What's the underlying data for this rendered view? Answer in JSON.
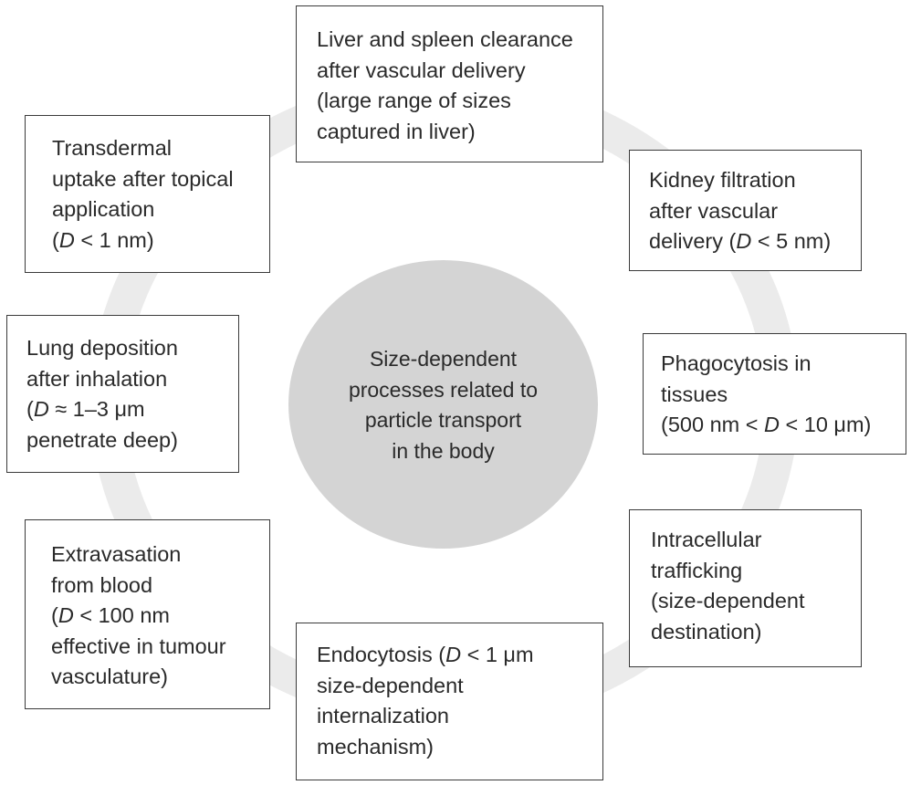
{
  "center": {
    "lines": [
      "Size-dependent",
      "processes related to",
      "particle transport",
      "in the body"
    ]
  },
  "colors": {
    "ring": "#ebebeb",
    "hub": "#d4d4d4",
    "box_border": "#3a3a3a",
    "text": "#2a2a2a"
  },
  "boxes": {
    "liver": {
      "lines": [
        "Liver and spleen clearance",
        "after vascular delivery",
        "(large range of sizes",
        "captured in liver)"
      ]
    },
    "kidney": {
      "line1": "Kidney filtration",
      "line2": "after vascular",
      "line3_pre": "delivery (",
      "line3_var": "D",
      "line3_post": " < 5 nm)"
    },
    "phagocytosis": {
      "line1": "Phagocytosis in",
      "line2": "tissues",
      "line3_pre": "(500 nm < ",
      "line3_var": "D",
      "line3_post": " < 10 μm)"
    },
    "intracellular": {
      "lines": [
        "Intracellular",
        "trafficking",
        "(size-dependent",
        "destination)"
      ]
    },
    "endocytosis": {
      "line1_pre": "Endocytosis (",
      "line1_var": "D",
      "line1_post": " < 1 μm",
      "line2": "size-dependent",
      "line3": "internalization",
      "line4": "mechanism)"
    },
    "extravasation": {
      "line1": "Extravasation",
      "line2": "from blood",
      "line3_pre": "(",
      "line3_var": "D",
      "line3_post": " < 100 nm",
      "line4": "effective in tumour",
      "line5": "vasculature)"
    },
    "lung": {
      "line1": "Lung deposition",
      "line2": "after inhalation",
      "line3_pre": "(",
      "line3_var": "D",
      "line3_post": " ≈ 1–3 μm",
      "line4": "penetrate deep)"
    },
    "transdermal": {
      "line1": "Transdermal",
      "line2": "uptake after topical",
      "line3": "application",
      "line4_pre": "(",
      "line4_var": "D",
      "line4_post": " < 1 nm)"
    }
  }
}
